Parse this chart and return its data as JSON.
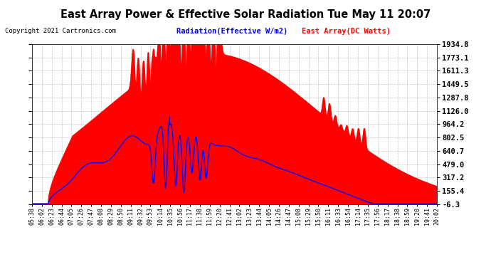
{
  "title": "East Array Power & Effective Solar Radiation Tue May 11 20:07",
  "copyright": "Copyright 2021 Cartronics.com",
  "legend_radiation": "Radiation(Effective W/m2)",
  "legend_array": "East Array(DC Watts)",
  "y_ticks": [
    -6.3,
    155.4,
    317.2,
    479.0,
    640.7,
    802.5,
    964.2,
    1126.0,
    1287.8,
    1449.5,
    1611.3,
    1773.1,
    1934.8
  ],
  "ylim": [
    -6.3,
    1934.8
  ],
  "background_color": "#ffffff",
  "plot_bg_color": "#ffffff",
  "grid_color": "#bbbbbb",
  "red_color": "#ff0000",
  "blue_color": "#0000ff",
  "title_color": "#000000",
  "copyright_color": "#000000",
  "x_tick_labels": [
    "05:38",
    "06:02",
    "06:23",
    "06:44",
    "07:05",
    "07:26",
    "07:47",
    "08:08",
    "08:29",
    "08:50",
    "09:11",
    "09:32",
    "09:53",
    "10:14",
    "10:35",
    "10:56",
    "11:17",
    "11:38",
    "11:59",
    "12:20",
    "12:41",
    "13:02",
    "13:23",
    "13:44",
    "14:05",
    "14:26",
    "14:47",
    "15:08",
    "15:29",
    "15:50",
    "16:11",
    "16:33",
    "16:54",
    "17:14",
    "17:35",
    "17:56",
    "18:17",
    "18:38",
    "18:59",
    "19:20",
    "19:41",
    "20:02"
  ]
}
